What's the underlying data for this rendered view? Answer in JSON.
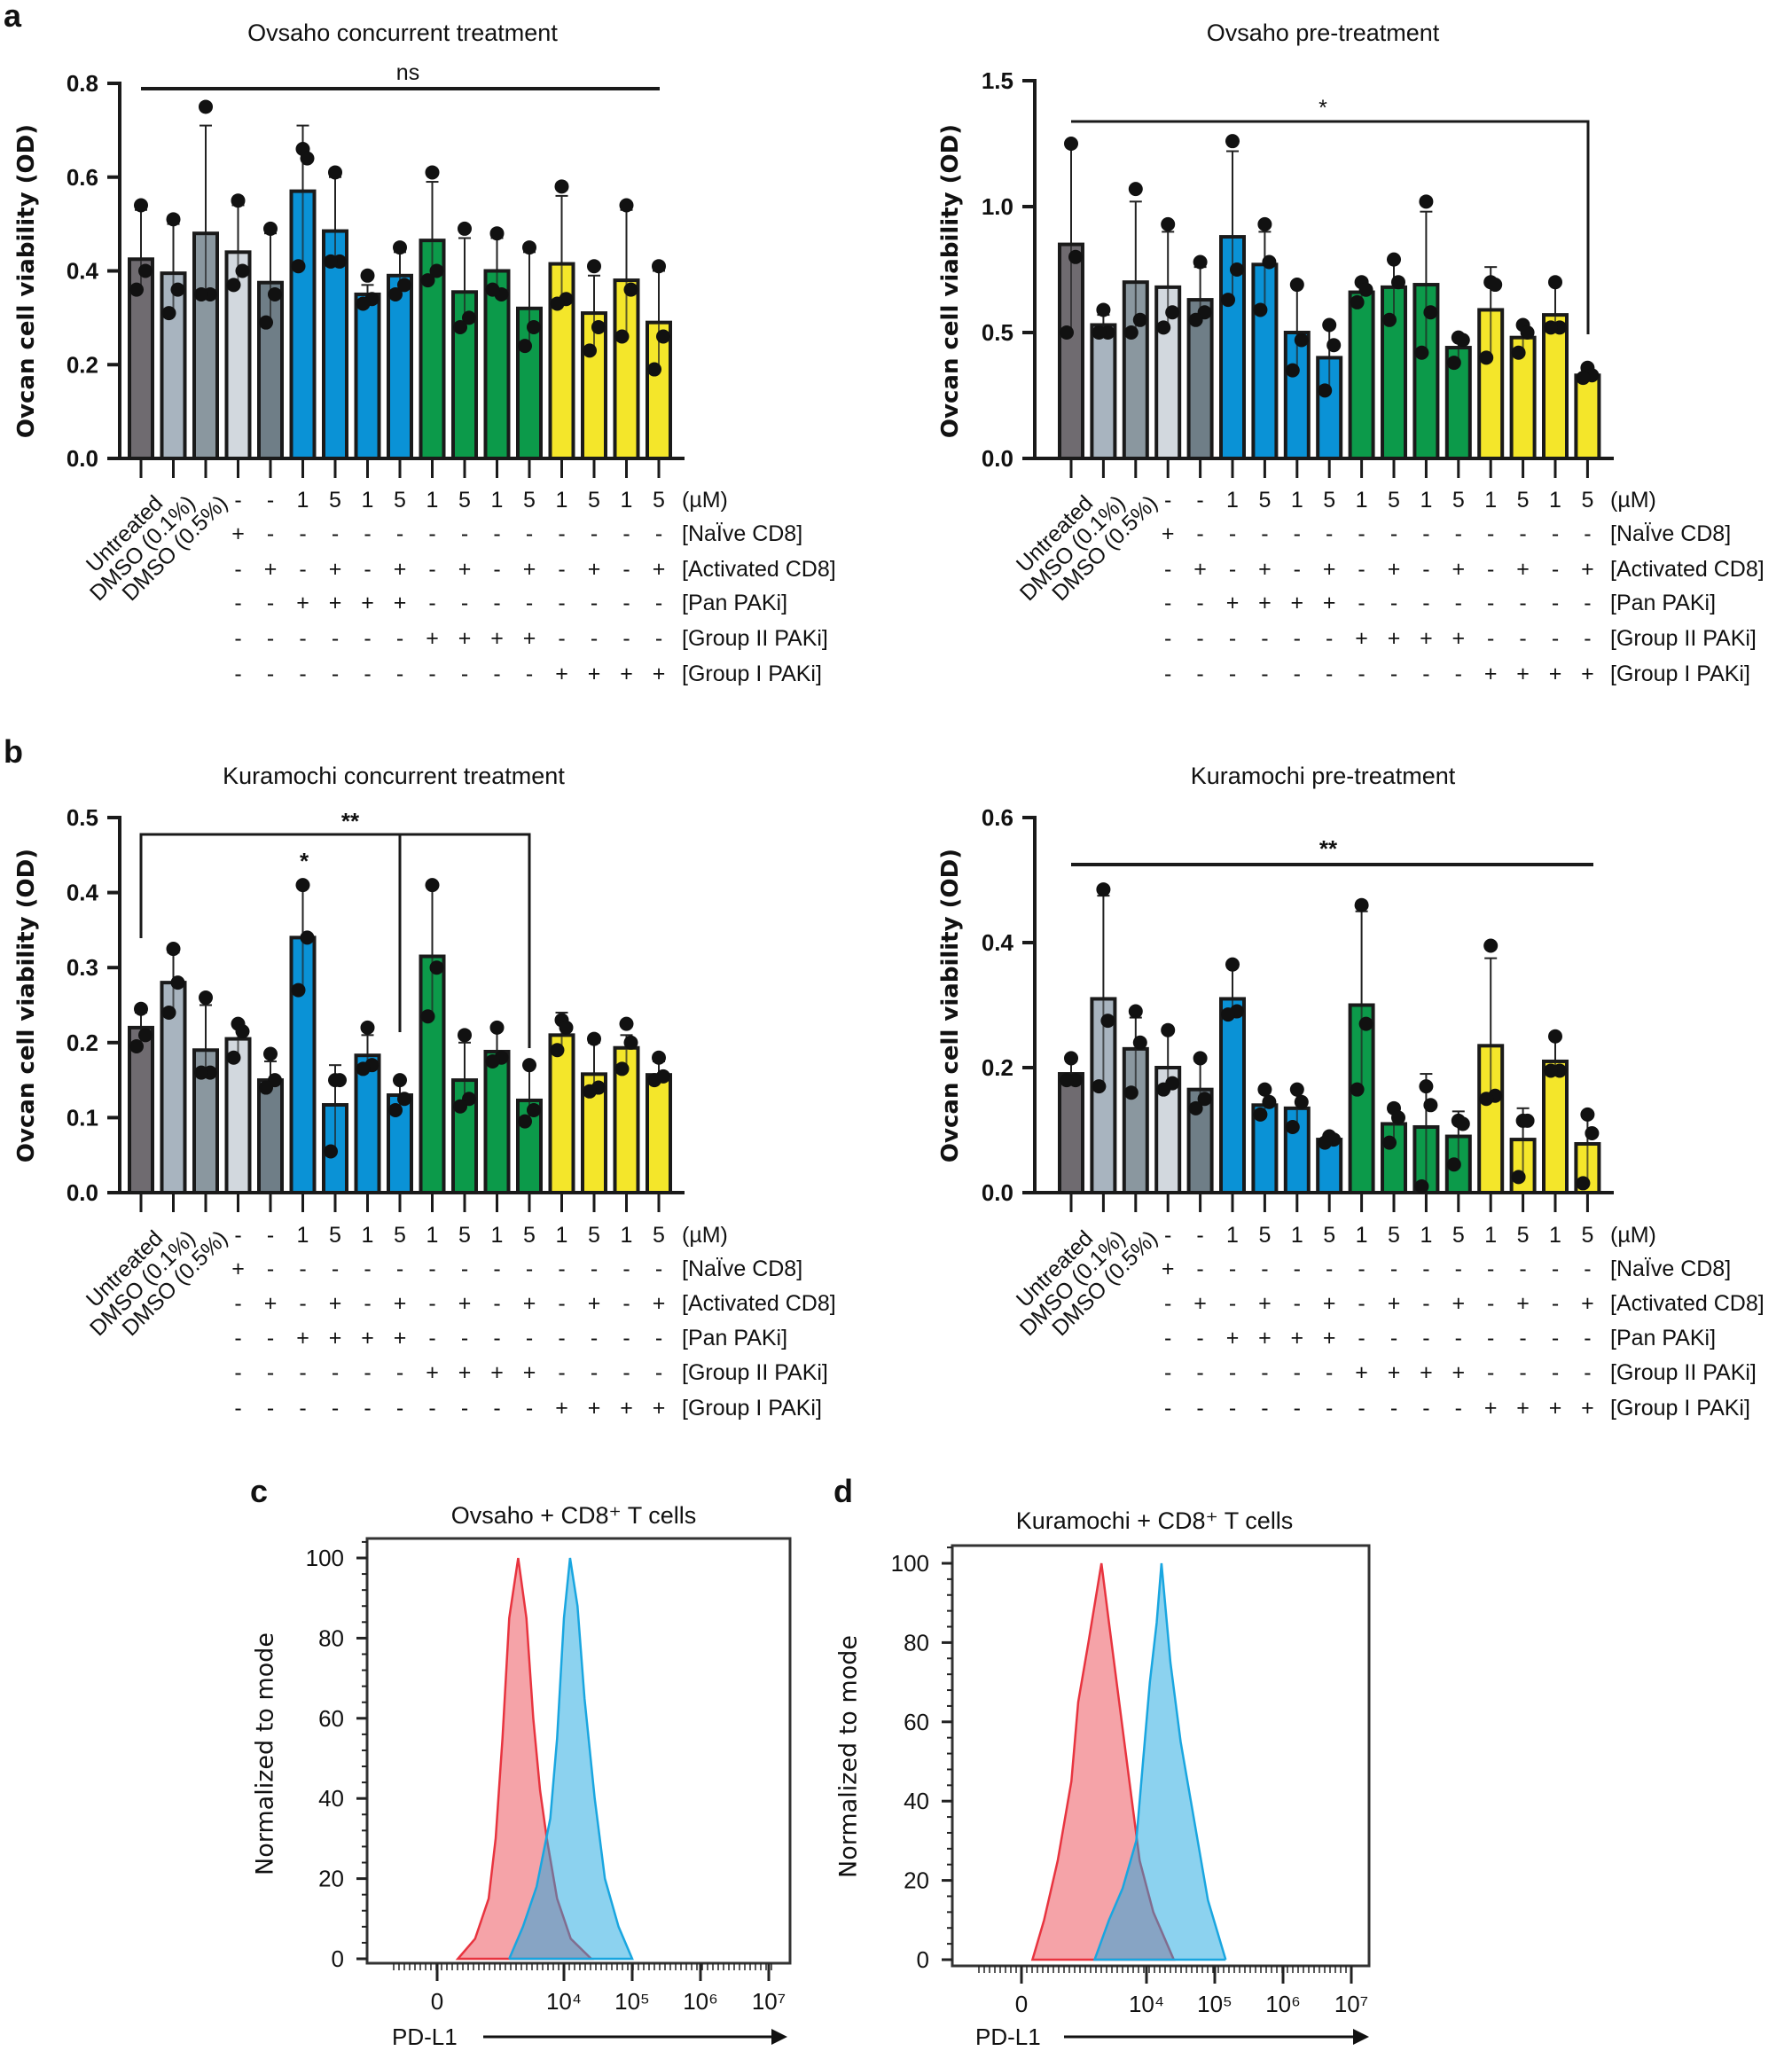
{
  "panel_labels": {
    "a": "a",
    "b": "b",
    "c": "c",
    "d": "d"
  },
  "conditions": {
    "sample_labels": [
      "Untreated",
      "DMSO (0.1%)",
      "DMSO (0.5%)"
    ],
    "row_labels": [
      "(µM)",
      "[NaÏve CD8]",
      "[Activated CD8]",
      "[Pan PAKi]",
      "[Group II PAKi]",
      "[Group I PAKi]"
    ],
    "rows": [
      [
        "-",
        "-",
        "1",
        "5",
        "1",
        "5",
        "1",
        "5",
        "1",
        "5",
        "1",
        "5",
        "1",
        "5"
      ],
      [
        "+",
        "-",
        "-",
        "-",
        "-",
        "-",
        "-",
        "-",
        "-",
        "-",
        "-",
        "-",
        "-",
        "-"
      ],
      [
        "-",
        "+",
        "-",
        "+",
        "-",
        "+",
        "-",
        "+",
        "-",
        "+",
        "-",
        "+",
        "-",
        "+"
      ],
      [
        "-",
        "-",
        "+",
        "+",
        "+",
        "+",
        "-",
        "-",
        "-",
        "-",
        "-",
        "-",
        "-",
        "-"
      ],
      [
        "-",
        "-",
        "-",
        "-",
        "-",
        "-",
        "+",
        "+",
        "+",
        "+",
        "-",
        "-",
        "-",
        "-"
      ],
      [
        "-",
        "-",
        "-",
        "-",
        "-",
        "-",
        "-",
        "-",
        "-",
        "-",
        "+",
        "+",
        "+",
        "+"
      ]
    ]
  },
  "bar_colors": [
    "#6f6b70",
    "#a8b4bf",
    "#8a979f",
    "#d2d8de",
    "#6f7e87",
    "#0a92d6",
    "#0a92d6",
    "#0a92d6",
    "#0a92d6",
    "#0c9a4a",
    "#0c9a4a",
    "#0c9a4a",
    "#0c9a4a",
    "#f4e62a",
    "#f4e62a",
    "#f4e62a",
    "#f4e62a"
  ],
  "chart_data": [
    {
      "type": "bar",
      "title": "Ovsaho concurrent treatment",
      "ylabel": "Ovcan cell viability (OD)",
      "ylim": [
        0,
        0.8
      ],
      "yticks": [
        "0.0",
        "0.2",
        "0.4",
        "0.6",
        "0.8"
      ],
      "values": [
        0.425,
        0.395,
        0.48,
        0.44,
        0.375,
        0.57,
        0.485,
        0.35,
        0.39,
        0.465,
        0.355,
        0.4,
        0.32,
        0.415,
        0.31,
        0.38,
        0.29
      ],
      "error_upper": [
        0.53,
        0.5,
        0.71,
        0.54,
        0.48,
        0.71,
        0.6,
        0.37,
        0.44,
        0.59,
        0.47,
        0.47,
        0.44,
        0.56,
        0.39,
        0.53,
        0.4
      ],
      "points": [
        [
          0.54,
          0.4,
          0.36
        ],
        [
          0.51,
          0.36,
          0.31
        ],
        [
          0.75,
          0.35,
          0.35
        ],
        [
          0.55,
          0.4,
          0.37
        ],
        [
          0.49,
          0.35,
          0.29
        ],
        [
          0.66,
          0.64,
          0.41
        ],
        [
          0.61,
          0.42,
          0.42
        ],
        [
          0.39,
          0.34,
          0.33
        ],
        [
          0.45,
          0.37,
          0.35
        ],
        [
          0.61,
          0.4,
          0.38
        ],
        [
          0.49,
          0.3,
          0.28
        ],
        [
          0.48,
          0.35,
          0.36
        ],
        [
          0.45,
          0.28,
          0.24
        ],
        [
          0.58,
          0.34,
          0.33
        ],
        [
          0.41,
          0.28,
          0.23
        ],
        [
          0.54,
          0.36,
          0.26
        ],
        [
          0.41,
          0.26,
          0.19
        ]
      ],
      "significance": [
        {
          "label": "ns"
        }
      ]
    },
    {
      "type": "bar",
      "title": "Ovsaho pre-treatment",
      "ylabel": "Ovcan cell viability (OD)",
      "ylim": [
        0,
        1.5
      ],
      "yticks": [
        "0.0",
        "0.5",
        "1.0",
        "1.5"
      ],
      "values": [
        0.85,
        0.53,
        0.7,
        0.68,
        0.63,
        0.88,
        0.77,
        0.5,
        0.4,
        0.66,
        0.68,
        0.69,
        0.44,
        0.59,
        0.48,
        0.57,
        0.33
      ],
      "error_upper": [
        1.24,
        0.57,
        1.02,
        0.9,
        0.76,
        1.22,
        0.9,
        0.69,
        0.53,
        0.7,
        0.79,
        0.98,
        0.48,
        0.76,
        0.52,
        0.7,
        0.36
      ],
      "points": [
        [
          1.25,
          0.8,
          0.5
        ],
        [
          0.59,
          0.5,
          0.5
        ],
        [
          1.07,
          0.55,
          0.5
        ],
        [
          0.93,
          0.58,
          0.52
        ],
        [
          0.78,
          0.58,
          0.55
        ],
        [
          1.26,
          0.75,
          0.63
        ],
        [
          0.93,
          0.78,
          0.59
        ],
        [
          0.69,
          0.47,
          0.35
        ],
        [
          0.53,
          0.45,
          0.27
        ],
        [
          0.7,
          0.67,
          0.62
        ],
        [
          0.79,
          0.7,
          0.55
        ],
        [
          1.02,
          0.58,
          0.42
        ],
        [
          0.48,
          0.47,
          0.38
        ],
        [
          0.7,
          0.69,
          0.4
        ],
        [
          0.53,
          0.5,
          0.42
        ],
        [
          0.7,
          0.52,
          0.52
        ],
        [
          0.36,
          0.33,
          0.32
        ]
      ],
      "significance": [
        {
          "label": "*"
        }
      ]
    },
    {
      "type": "bar",
      "title": "Kuramochi concurrent treatment",
      "ylabel": "Ovcan cell viability (OD)",
      "ylim": [
        0,
        0.5
      ],
      "yticks": [
        "0.0",
        "0.1",
        "0.2",
        "0.3",
        "0.4",
        "0.5"
      ],
      "values": [
        0.22,
        0.28,
        0.19,
        0.205,
        0.15,
        0.34,
        0.117,
        0.183,
        0.13,
        0.315,
        0.15,
        0.188,
        0.123,
        0.21,
        0.158,
        0.193,
        0.157
      ],
      "error_upper": [
        0.24,
        0.32,
        0.25,
        0.225,
        0.175,
        0.41,
        0.17,
        0.21,
        0.15,
        0.41,
        0.2,
        0.22,
        0.17,
        0.24,
        0.2,
        0.21,
        0.175
      ],
      "points": [
        [
          0.245,
          0.21,
          0.195
        ],
        [
          0.325,
          0.28,
          0.24
        ],
        [
          0.26,
          0.16,
          0.16
        ],
        [
          0.225,
          0.215,
          0.18
        ],
        [
          0.185,
          0.15,
          0.14
        ],
        [
          0.41,
          0.34,
          0.27
        ],
        [
          0.15,
          0.15,
          0.055
        ],
        [
          0.22,
          0.17,
          0.165
        ],
        [
          0.15,
          0.125,
          0.11
        ],
        [
          0.41,
          0.3,
          0.235
        ],
        [
          0.21,
          0.125,
          0.115
        ],
        [
          0.22,
          0.18,
          0.175
        ],
        [
          0.17,
          0.11,
          0.095
        ],
        [
          0.23,
          0.22,
          0.19
        ],
        [
          0.205,
          0.14,
          0.135
        ],
        [
          0.225,
          0.2,
          0.165
        ],
        [
          0.18,
          0.155,
          0.15
        ]
      ],
      "significance": [
        {
          "label": "**"
        },
        {
          "label": "*"
        }
      ]
    },
    {
      "type": "bar",
      "title": "Kuramochi pre-treatment",
      "ylabel": "Ovcan cell viability (OD)",
      "ylim": [
        0,
        0.6
      ],
      "yticks": [
        "0.0",
        "0.2",
        "0.4",
        "0.6"
      ],
      "values": [
        0.19,
        0.31,
        0.23,
        0.2,
        0.165,
        0.31,
        0.14,
        0.135,
        0.085,
        0.3,
        0.11,
        0.105,
        0.09,
        0.235,
        0.085,
        0.21,
        0.078
      ],
      "error_upper": [
        0.21,
        0.475,
        0.28,
        0.26,
        0.21,
        0.36,
        0.16,
        0.165,
        0.09,
        0.45,
        0.13,
        0.19,
        0.13,
        0.375,
        0.135,
        0.25,
        0.125
      ],
      "points": [
        [
          0.215,
          0.18,
          0.18
        ],
        [
          0.485,
          0.275,
          0.17
        ],
        [
          0.29,
          0.24,
          0.16
        ],
        [
          0.26,
          0.175,
          0.165
        ],
        [
          0.215,
          0.15,
          0.135
        ],
        [
          0.365,
          0.29,
          0.285
        ],
        [
          0.165,
          0.145,
          0.125
        ],
        [
          0.165,
          0.145,
          0.105
        ],
        [
          0.09,
          0.085,
          0.08
        ],
        [
          0.46,
          0.27,
          0.165
        ],
        [
          0.135,
          0.12,
          0.08
        ],
        [
          0.17,
          0.14,
          0.01
        ],
        [
          0.115,
          0.11,
          0.045
        ],
        [
          0.395,
          0.155,
          0.15
        ],
        [
          0.115,
          0.115,
          0.025
        ],
        [
          0.25,
          0.195,
          0.195
        ],
        [
          0.125,
          0.095,
          0.015
        ]
      ],
      "significance": [
        {
          "label": "**"
        }
      ]
    },
    {
      "type": "area",
      "title": "Ovsaho + CD8⁺ T cells",
      "xlabel": "PD-L1",
      "ylabel": "Normalized to mode",
      "x_scale": "biexponential (log)",
      "xticks": [
        "0",
        "10⁴",
        "10⁵",
        "10⁶",
        "10⁷"
      ],
      "yticks": [
        "0",
        "20",
        "40",
        "60",
        "80",
        "100"
      ],
      "ylim": [
        0,
        100
      ],
      "series": [
        {
          "color": "#e8343f",
          "x": [
            280,
            500,
            790,
            1000,
            1260,
            1580,
            2140,
            2820,
            3550,
            4470,
            5620,
            7940,
            12600,
            25100
          ],
          "y": [
            0,
            5,
            15,
            30,
            55,
            85,
            100,
            85,
            60,
            42,
            30,
            15,
            5,
            0
          ]
        },
        {
          "color": "#19a6e0",
          "x": [
            1580,
            2510,
            3980,
            6310,
            7940,
            10000,
            12300,
            15800,
            20000,
            28200,
            39800,
            63100,
            100000
          ],
          "y": [
            0,
            8,
            18,
            35,
            55,
            85,
            100,
            88,
            65,
            40,
            20,
            8,
            0
          ]
        }
      ]
    },
    {
      "type": "area",
      "title": "Kuramochi + CD8⁺ T cells",
      "xlabel": "PD-L1",
      "ylabel": "Normalized to mode",
      "x_scale": "biexponential (log)",
      "xticks": [
        "0",
        "10⁴",
        "10⁵",
        "10⁶",
        "10⁷"
      ],
      "yticks": [
        "0",
        "20",
        "40",
        "60",
        "80",
        "100"
      ],
      "ylim": [
        0,
        100
      ],
      "series": [
        {
          "color": "#e8343f",
          "x": [
            214,
            316,
            501,
            794,
            1000,
            1410,
            2190,
            2820,
            3980,
            5620,
            7940,
            12600,
            25100
          ],
          "y": [
            0,
            10,
            25,
            45,
            65,
            80,
            100,
            85,
            65,
            45,
            25,
            12,
            0
          ]
        },
        {
          "color": "#19a6e0",
          "x": [
            1740,
            2820,
            4470,
            7080,
            8910,
            11200,
            14100,
            16600,
            22400,
            31600,
            50100,
            79400,
            144500
          ],
          "y": [
            0,
            10,
            18,
            30,
            50,
            70,
            85,
            100,
            75,
            55,
            35,
            15,
            0
          ]
        }
      ]
    }
  ]
}
